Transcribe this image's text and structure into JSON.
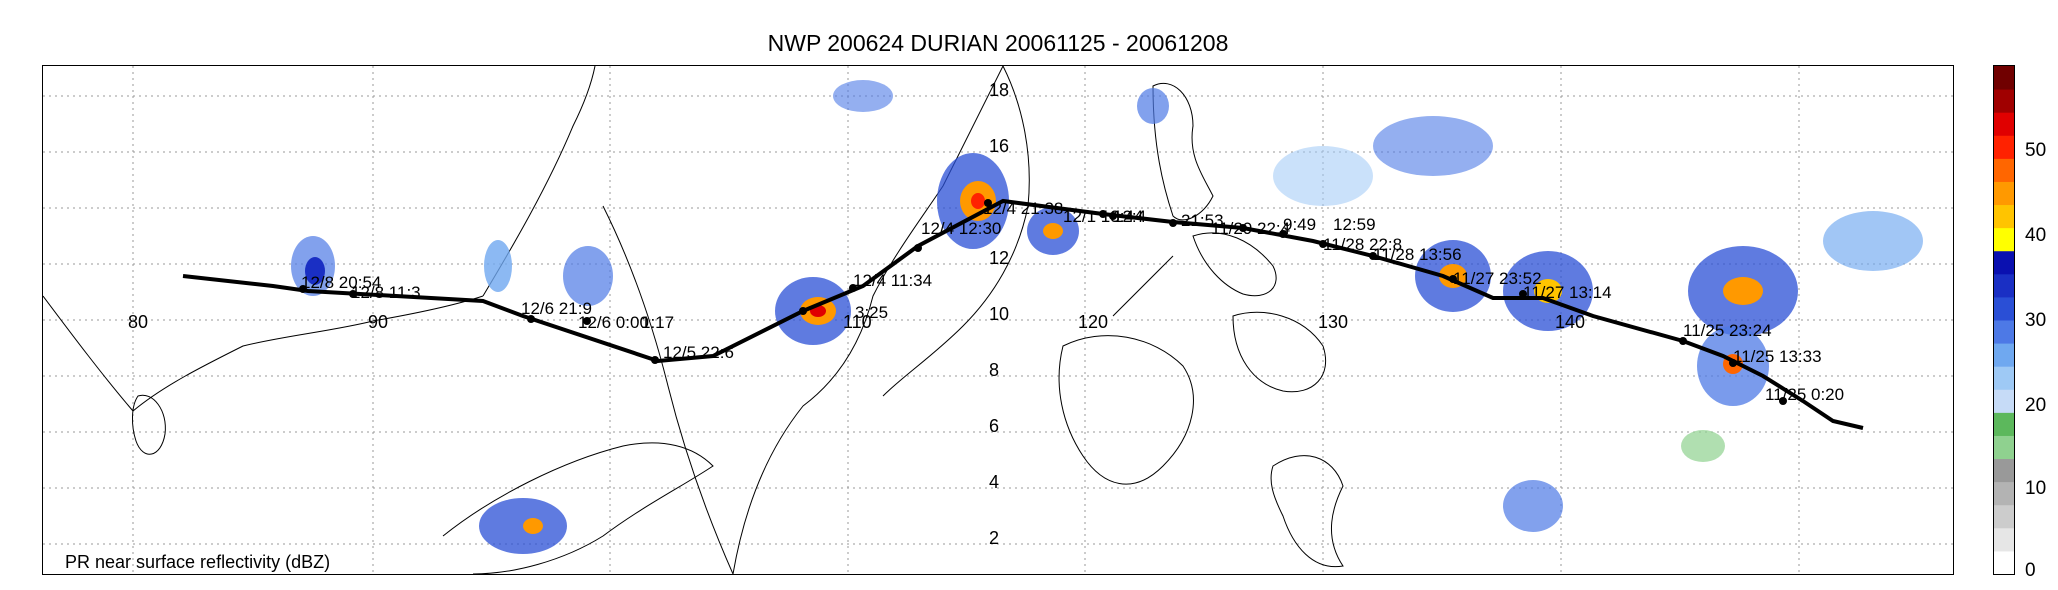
{
  "title": "NWP 200624 DURIAN 20061125 - 20061208",
  "caption": "PR near surface reflectivity (dBZ)",
  "axes": {
    "longitudes": [
      "80",
      "90",
      "110",
      "120",
      "130",
      "140"
    ],
    "latitudes": [
      "18",
      "16",
      "12",
      "10",
      "8",
      "6",
      "4",
      "2"
    ]
  },
  "colorbar": {
    "labels": [
      "50",
      "40",
      "30",
      "20",
      "10",
      "0"
    ],
    "colors": [
      "#ffffff",
      "#e6e6e6",
      "#cccccc",
      "#b3b3b3",
      "#999999",
      "#8fd18f",
      "#5cb85c",
      "#c6dbf7",
      "#9ec9f5",
      "#6fa8f0",
      "#4d79e6",
      "#2a4fd6",
      "#1a2fc4",
      "#0a10b0",
      "#ffff00",
      "#ffc400",
      "#ff9900",
      "#ff6600",
      "#ff2200",
      "#e00000",
      "#a00000",
      "#700000"
    ]
  },
  "track_labels": [
    "12/8 20:54",
    "12/8 11:3",
    "12/6 21:9",
    "12/6 0:00",
    "1:17",
    "12/5 22:6",
    "12/4 11:34",
    "3:25",
    "12/4 12:30",
    "12/4 21:38",
    "12/1 13:44",
    "12:4",
    "21:53",
    "11/29 22:4",
    "9:49",
    "12:59",
    "11/28 22:8",
    "11/28 13:56",
    "11/27 23:52",
    "11/27 13:14",
    "11/25 23:24",
    "11/25 13:33",
    "11/25 0:20"
  ]
}
